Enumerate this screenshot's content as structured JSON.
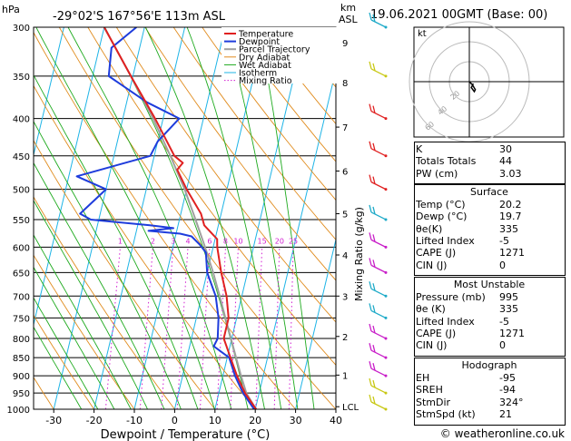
{
  "header": {
    "pressure_unit": "hPa",
    "location": "-29°02'S 167°56'E 113m ASL",
    "height_unit_top": "km",
    "height_unit_bottom": "ASL",
    "datetime": "19.06.2021 00GMT (Base: 00)"
  },
  "footer": {
    "copyright": "© weatheronline.co.uk"
  },
  "chart_data": {
    "type": "line",
    "title": "-29°02'S 167°56'E 113m ASL",
    "xlabel": "Dewpoint / Temperature (°C)",
    "ylabel": "hPa",
    "x_ticks": [
      "-30",
      "-20",
      "-10",
      "0",
      "10",
      "20",
      "30",
      "40"
    ],
    "pressure_levels": [
      "300",
      "350",
      "400",
      "450",
      "500",
      "550",
      "600",
      "650",
      "700",
      "750",
      "800",
      "850",
      "900",
      "950",
      "1000"
    ],
    "height_ticks_km": [
      {
        "label": "9",
        "p": 315
      },
      {
        "label": "8",
        "p": 357
      },
      {
        "label": "7",
        "p": 411
      },
      {
        "label": "6",
        "p": 472
      },
      {
        "label": "5",
        "p": 540
      },
      {
        "label": "4",
        "p": 615
      },
      {
        "label": "3",
        "p": 700
      },
      {
        "label": "2",
        "p": 795
      },
      {
        "label": "1",
        "p": 898
      },
      {
        "label": "LCL",
        "p": 992
      }
    ],
    "secondary_axis_label": "Mixing Ratio (g/kg)",
    "mixing_ratio_labels": [
      "1",
      "2",
      "3",
      "4",
      "6",
      "8",
      "10",
      "15",
      "20",
      "25"
    ],
    "legend": [
      "Temperature",
      "Dewpoint",
      "Parcel Trajectory",
      "Dry Adiabat",
      "Wet Adiabat",
      "Isotherm",
      "Mixing Ratio"
    ],
    "series": [
      {
        "name": "Temperature",
        "points": [
          [
            1000,
            20.2
          ],
          [
            950,
            16.5
          ],
          [
            900,
            13.5
          ],
          [
            850,
            10.8
          ],
          [
            800,
            8.0
          ],
          [
            750,
            8.0
          ],
          [
            700,
            6.2
          ],
          [
            650,
            3.5
          ],
          [
            600,
            1.0
          ],
          [
            585,
            0.5
          ],
          [
            560,
            -3.5
          ],
          [
            540,
            -5.0
          ],
          [
            500,
            -10.0
          ],
          [
            470,
            -13.5
          ],
          [
            460,
            -12.5
          ],
          [
            450,
            -15.0
          ],
          [
            400,
            -22.0
          ],
          [
            350,
            -30.5
          ],
          [
            300,
            -40.0
          ]
        ]
      },
      {
        "name": "Dewpoint",
        "points": [
          [
            1000,
            19.7
          ],
          [
            950,
            16.0
          ],
          [
            900,
            13.0
          ],
          [
            850,
            10.5
          ],
          [
            820,
            6.0
          ],
          [
            800,
            6.5
          ],
          [
            750,
            5.5
          ],
          [
            700,
            3.5
          ],
          [
            650,
            0.0
          ],
          [
            610,
            -1.5
          ],
          [
            595,
            -3.5
          ],
          [
            580,
            -6.0
          ],
          [
            575,
            -9.0
          ],
          [
            570,
            -17.0
          ],
          [
            565,
            -11.0
          ],
          [
            560,
            -17.0
          ],
          [
            550,
            -32.0
          ],
          [
            540,
            -35.0
          ],
          [
            500,
            -30.0
          ],
          [
            480,
            -38.0
          ],
          [
            450,
            -21.0
          ],
          [
            430,
            -20.0
          ],
          [
            400,
            -16.0
          ],
          [
            380,
            -25.0
          ],
          [
            350,
            -36.0
          ],
          [
            320,
            -37.0
          ],
          [
            300,
            -32.0
          ]
        ]
      },
      {
        "name": "Parcel Trajectory",
        "points": [
          [
            1000,
            20.2
          ],
          [
            950,
            16.8
          ],
          [
            900,
            14.5
          ],
          [
            850,
            12.2
          ],
          [
            800,
            9.8
          ],
          [
            750,
            7.2
          ],
          [
            700,
            4.5
          ],
          [
            650,
            1.5
          ],
          [
            600,
            -2.0
          ],
          [
            550,
            -6.0
          ],
          [
            500,
            -10.5
          ],
          [
            450,
            -16.0
          ],
          [
            400,
            -22.5
          ],
          [
            350,
            -30.5
          ],
          [
            300,
            -40.0
          ]
        ]
      }
    ],
    "wind_barbs": {
      "pressure_levels": [
        1000,
        950,
        900,
        850,
        800,
        750,
        700,
        650,
        600,
        550,
        500,
        450,
        400,
        350,
        300
      ]
    },
    "xlim": [
      -35,
      40
    ],
    "ylim": [
      1000,
      300
    ],
    "grid": true
  },
  "hodograph": {
    "unit": "kt",
    "ring_labels": [
      "20",
      "40",
      "60"
    ],
    "points": [
      [
        0,
        0
      ],
      [
        3,
        -3
      ],
      [
        6,
        -8
      ],
      [
        5,
        -10
      ],
      [
        2,
        -6
      ],
      [
        4,
        -2
      ]
    ]
  },
  "indices": {
    "basic": [
      {
        "label": "K",
        "value": "30"
      },
      {
        "label": "Totals Totals",
        "value": "44"
      },
      {
        "label": "PW (cm)",
        "value": "3.03"
      }
    ],
    "surface_title": "Surface",
    "surface": [
      {
        "label": "Temp (°C)",
        "value": "20.2"
      },
      {
        "label": "Dewp (°C)",
        "value": "19.7"
      },
      {
        "label": "θe(K)",
        "value": "335"
      },
      {
        "label": "Lifted Index",
        "value": "-5"
      },
      {
        "label": "CAPE (J)",
        "value": "1271"
      },
      {
        "label": "CIN (J)",
        "value": "0"
      }
    ],
    "unstable_title": "Most Unstable",
    "unstable": [
      {
        "label": "Pressure (mb)",
        "value": "995"
      },
      {
        "label": "θe (K)",
        "value": "335"
      },
      {
        "label": "Lifted Index",
        "value": "-5"
      },
      {
        "label": "CAPE (J)",
        "value": "1271"
      },
      {
        "label": "CIN (J)",
        "value": "0"
      }
    ],
    "hodo_title": "Hodograph",
    "hodo": [
      {
        "label": "EH",
        "value": "-95"
      },
      {
        "label": "SREH",
        "value": "-94"
      },
      {
        "label": "StmDir",
        "value": "324°"
      },
      {
        "label": "StmSpd (kt)",
        "value": "21"
      }
    ]
  },
  "colors": {
    "temperature": "#e02020",
    "dewpoint": "#1e3cdc",
    "parcel": "#a0a0a0",
    "dry_adiabat": "#e08c1e",
    "wet_adiabat": "#1eaa1e",
    "isotherm": "#1eb4e6",
    "mixing_ratio": "#d21ed2"
  }
}
